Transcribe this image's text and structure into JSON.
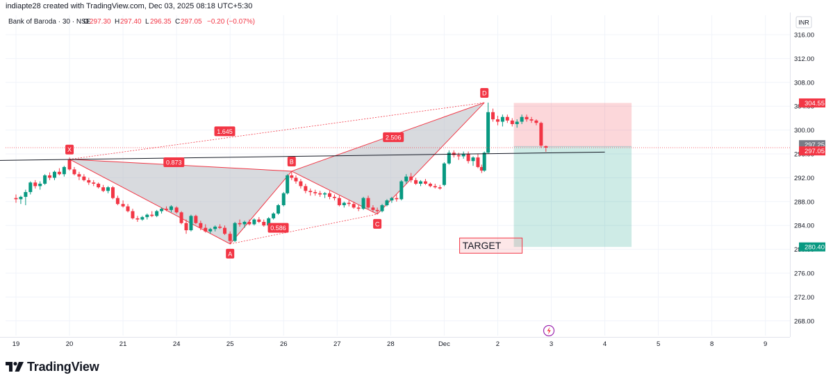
{
  "header": {
    "attribution": "indiapte28 created with TradingView.com, Dec 03, 2025 08:18 UTC+5:30"
  },
  "legend": {
    "symbol": "Bank of Baroda · 30 · NSE",
    "o_label": "O",
    "o_value": "297.30",
    "h_label": "H",
    "h_value": "297.40",
    "l_label": "L",
    "l_value": "296.35",
    "c_label": "C",
    "c_value": "297.05",
    "change": "−0.20 (−0.07%)"
  },
  "currency_label": "INR",
  "footer": {
    "brand": "TradingView"
  },
  "chart_data": {
    "type": "candlestick",
    "instrument": "Bank of Baroda",
    "interval": "30",
    "exchange": "NSE",
    "y_axis": {
      "ticks": [
        "316.00",
        "312.00",
        "308.00",
        "304.00",
        "300.00",
        "296.00",
        "292.00",
        "288.00",
        "284.00",
        "280.00",
        "276.00",
        "272.00",
        "268.00"
      ],
      "range": [
        265.5,
        317.6
      ]
    },
    "x_axis": {
      "ticks": [
        {
          "label": "19",
          "x": 0
        },
        {
          "label": "20",
          "x": 1
        },
        {
          "label": "21",
          "x": 2
        },
        {
          "label": "24",
          "x": 3
        },
        {
          "label": "25",
          "x": 4
        },
        {
          "label": "26",
          "x": 5
        },
        {
          "label": "27",
          "x": 6
        },
        {
          "label": "28",
          "x": 7
        },
        {
          "label": "Dec",
          "x": 8
        },
        {
          "label": "2",
          "x": 9
        },
        {
          "label": "3",
          "x": 10
        },
        {
          "label": "4",
          "x": 11
        },
        {
          "label": "5",
          "x": 12
        },
        {
          "label": "8",
          "x": 13
        },
        {
          "label": "9",
          "x": 14
        }
      ]
    },
    "price_labels": [
      {
        "value": 304.55,
        "text": "304.55",
        "color": "#f23645",
        "style": "filled"
      },
      {
        "value": 297.25,
        "text": "297.25",
        "color": "#787b86",
        "style": "filled"
      },
      {
        "value": 297.05,
        "text": "297.05",
        "color": "#f23645",
        "style": "filled"
      },
      {
        "value": 280.4,
        "text": "280.40",
        "color": "#089981",
        "style": "filled"
      }
    ],
    "harmonic_pattern": {
      "points": [
        {
          "label": "X",
          "x": 1.0,
          "price": 295.1
        },
        {
          "label": "A",
          "x": 4.0,
          "price": 280.9
        },
        {
          "label": "B",
          "x": 5.15,
          "price": 293.1
        },
        {
          "label": "C",
          "x": 6.75,
          "price": 285.9
        },
        {
          "label": "D",
          "x": 8.75,
          "price": 304.6
        }
      ],
      "ratios": [
        {
          "text": "0.873",
          "x": 2.95,
          "price": 294.6
        },
        {
          "text": "1.645",
          "x": 3.9,
          "price": 299.8
        },
        {
          "text": "0.586",
          "x": 4.9,
          "price": 283.6
        },
        {
          "text": "2.506",
          "x": 7.05,
          "price": 298.8
        }
      ]
    },
    "trendline": {
      "x1": -1.2,
      "p1": 294.8,
      "x2": 11.0,
      "p2": 296.3
    },
    "position": {
      "x_start": 9.3,
      "x_end": 11.5,
      "entry": 297.25,
      "stop": 304.55,
      "target": 280.4,
      "target_label": "TARGET"
    },
    "candles": [
      [
        0.0,
        288.6,
        289.2,
        287.8,
        288.4
      ],
      [
        0.09,
        288.4,
        289.0,
        287.6,
        288.8
      ],
      [
        0.18,
        288.8,
        290.0,
        287.4,
        289.6
      ],
      [
        0.27,
        289.6,
        291.4,
        289.2,
        291.2
      ],
      [
        0.36,
        291.2,
        291.6,
        290.2,
        290.6
      ],
      [
        0.45,
        290.6,
        291.4,
        290.0,
        291.0
      ],
      [
        0.54,
        291.0,
        292.6,
        290.8,
        292.4
      ],
      [
        0.63,
        292.4,
        292.9,
        291.6,
        292.0
      ],
      [
        0.72,
        292.0,
        293.2,
        291.6,
        293.0
      ],
      [
        0.81,
        293.0,
        293.6,
        292.4,
        292.6
      ],
      [
        0.9,
        292.6,
        294.0,
        292.2,
        293.8
      ],
      [
        1.0,
        295.0,
        295.4,
        293.2,
        293.4
      ],
      [
        1.09,
        293.4,
        293.8,
        292.4,
        292.6
      ],
      [
        1.18,
        292.6,
        293.0,
        291.6,
        292.2
      ],
      [
        1.27,
        292.2,
        292.6,
        291.4,
        291.6
      ],
      [
        1.36,
        291.6,
        292.0,
        290.8,
        291.2
      ],
      [
        1.45,
        291.2,
        291.6,
        290.6,
        291.0
      ],
      [
        1.54,
        291.0,
        291.2,
        290.2,
        290.4
      ],
      [
        1.63,
        290.4,
        290.8,
        289.6,
        289.8
      ],
      [
        1.72,
        289.8,
        290.6,
        289.4,
        290.4
      ],
      [
        1.81,
        290.4,
        290.6,
        288.4,
        288.6
      ],
      [
        1.9,
        288.6,
        289.0,
        287.4,
        287.6
      ],
      [
        2.0,
        287.6,
        288.2,
        287.0,
        287.2
      ],
      [
        2.09,
        287.2,
        287.6,
        286.2,
        286.4
      ],
      [
        2.18,
        286.4,
        286.8,
        285.0,
        285.2
      ],
      [
        2.27,
        285.2,
        285.6,
        284.6,
        285.0
      ],
      [
        2.36,
        285.0,
        285.6,
        284.8,
        285.4
      ],
      [
        2.45,
        285.4,
        286.0,
        285.0,
        285.8
      ],
      [
        2.54,
        285.8,
        286.4,
        285.4,
        285.6
      ],
      [
        2.63,
        285.6,
        286.6,
        285.4,
        286.4
      ],
      [
        2.72,
        286.4,
        287.0,
        286.0,
        286.8
      ],
      [
        2.81,
        286.8,
        287.2,
        286.4,
        286.6
      ],
      [
        2.9,
        286.6,
        287.4,
        286.2,
        287.2
      ],
      [
        3.0,
        287.0,
        287.2,
        286.0,
        286.2
      ],
      [
        3.09,
        286.2,
        286.4,
        284.2,
        284.4
      ],
      [
        3.18,
        284.4,
        285.0,
        282.6,
        283.2
      ],
      [
        3.27,
        283.2,
        285.8,
        283.0,
        285.6
      ],
      [
        3.36,
        285.6,
        285.8,
        284.2,
        284.4
      ],
      [
        3.45,
        284.4,
        284.8,
        283.2,
        283.6
      ],
      [
        3.54,
        283.6,
        284.2,
        282.8,
        283.0
      ],
      [
        3.63,
        283.0,
        283.6,
        282.6,
        283.4
      ],
      [
        3.72,
        283.4,
        284.0,
        283.0,
        283.8
      ],
      [
        3.81,
        283.8,
        284.2,
        283.4,
        283.6
      ],
      [
        3.9,
        283.6,
        284.0,
        282.4,
        282.6
      ],
      [
        4.0,
        282.6,
        283.0,
        280.9,
        281.4
      ],
      [
        4.09,
        281.4,
        284.6,
        281.2,
        284.4
      ],
      [
        4.18,
        284.4,
        285.0,
        283.8,
        284.2
      ],
      [
        4.27,
        284.2,
        284.8,
        283.6,
        284.6
      ],
      [
        4.36,
        284.6,
        285.0,
        284.0,
        284.2
      ],
      [
        4.45,
        284.2,
        285.2,
        284.0,
        285.0
      ],
      [
        4.54,
        285.0,
        285.4,
        284.4,
        284.6
      ],
      [
        4.63,
        284.6,
        285.0,
        283.8,
        284.0
      ],
      [
        4.72,
        284.0,
        285.4,
        283.8,
        285.2
      ],
      [
        4.81,
        285.2,
        286.2,
        285.0,
        286.0
      ],
      [
        4.9,
        286.0,
        287.6,
        285.8,
        287.4
      ],
      [
        5.0,
        287.4,
        289.6,
        287.2,
        289.4
      ],
      [
        5.07,
        289.4,
        292.6,
        289.2,
        292.4
      ],
      [
        5.15,
        292.4,
        293.1,
        291.6,
        292.0
      ],
      [
        5.23,
        292.0,
        292.4,
        291.0,
        291.4
      ],
      [
        5.32,
        291.4,
        291.8,
        290.2,
        290.6
      ],
      [
        5.41,
        290.6,
        291.0,
        289.4,
        289.8
      ],
      [
        5.5,
        289.8,
        290.2,
        289.0,
        289.6
      ],
      [
        5.59,
        289.6,
        290.0,
        289.0,
        289.4
      ],
      [
        5.68,
        289.4,
        289.8,
        288.8,
        289.2
      ],
      [
        5.77,
        289.2,
        289.6,
        288.6,
        289.4
      ],
      [
        5.86,
        289.4,
        289.8,
        288.4,
        288.8
      ],
      [
        5.95,
        288.8,
        289.2,
        288.2,
        288.6
      ],
      [
        6.04,
        288.6,
        289.0,
        287.2,
        287.4
      ],
      [
        6.13,
        287.4,
        288.0,
        287.0,
        287.8
      ],
      [
        6.22,
        287.8,
        288.2,
        287.2,
        287.6
      ],
      [
        6.31,
        287.6,
        288.0,
        286.8,
        287.0
      ],
      [
        6.4,
        287.0,
        287.4,
        286.4,
        286.8
      ],
      [
        6.49,
        286.8,
        288.8,
        286.6,
        288.6
      ],
      [
        6.58,
        288.6,
        289.0,
        286.8,
        287.0
      ],
      [
        6.67,
        287.0,
        287.4,
        286.2,
        286.6
      ],
      [
        6.75,
        286.6,
        287.0,
        285.9,
        286.4
      ],
      [
        6.84,
        286.4,
        287.6,
        286.2,
        287.4
      ],
      [
        6.93,
        287.4,
        288.4,
        287.2,
        288.2
      ],
      [
        7.02,
        288.2,
        288.8,
        287.8,
        288.6
      ],
      [
        7.11,
        288.6,
        289.2,
        288.0,
        288.4
      ],
      [
        7.2,
        288.4,
        291.6,
        288.2,
        291.4
      ],
      [
        7.29,
        291.4,
        292.6,
        291.0,
        292.2
      ],
      [
        7.38,
        292.2,
        292.8,
        291.2,
        291.6
      ],
      [
        7.47,
        291.6,
        292.0,
        290.8,
        291.0
      ],
      [
        7.56,
        291.0,
        291.6,
        290.6,
        291.4
      ],
      [
        7.65,
        291.4,
        291.8,
        290.8,
        291.0
      ],
      [
        7.74,
        291.0,
        291.2,
        290.4,
        290.6
      ],
      [
        7.83,
        290.6,
        291.0,
        290.2,
        290.4
      ],
      [
        7.92,
        290.4,
        290.8,
        290.0,
        290.2
      ],
      [
        8.0,
        290.8,
        294.6,
        290.6,
        294.4
      ],
      [
        8.09,
        294.4,
        296.6,
        294.2,
        296.2
      ],
      [
        8.18,
        296.2,
        296.6,
        295.4,
        295.8
      ],
      [
        8.27,
        295.8,
        296.2,
        295.0,
        295.6
      ],
      [
        8.36,
        295.6,
        296.4,
        295.2,
        296.0
      ],
      [
        8.45,
        296.0,
        296.4,
        294.4,
        294.8
      ],
      [
        8.54,
        294.8,
        295.6,
        294.0,
        295.4
      ],
      [
        8.63,
        295.4,
        296.0,
        293.6,
        293.8
      ],
      [
        8.7,
        293.8,
        294.2,
        292.8,
        293.2
      ],
      [
        8.75,
        293.2,
        296.4,
        293.0,
        296.2
      ],
      [
        8.82,
        296.2,
        304.6,
        296.0,
        303.0
      ],
      [
        8.91,
        303.0,
        303.6,
        301.4,
        301.8
      ],
      [
        9.0,
        301.8,
        302.4,
        300.8,
        301.4
      ],
      [
        9.09,
        301.4,
        302.6,
        300.6,
        302.2
      ],
      [
        9.18,
        302.2,
        302.6,
        301.2,
        301.6
      ],
      [
        9.27,
        301.6,
        302.0,
        300.6,
        301.0
      ],
      [
        9.36,
        301.0,
        301.8,
        300.4,
        301.4
      ],
      [
        9.45,
        301.4,
        302.6,
        301.0,
        302.2
      ],
      [
        9.54,
        302.2,
        302.6,
        301.4,
        301.8
      ],
      [
        9.63,
        301.8,
        302.2,
        301.2,
        301.6
      ],
      [
        9.72,
        301.6,
        301.8,
        300.8,
        301.2
      ],
      [
        9.81,
        301.2,
        301.4,
        297.0,
        297.4
      ],
      [
        9.9,
        297.3,
        297.4,
        296.35,
        297.05
      ]
    ]
  }
}
